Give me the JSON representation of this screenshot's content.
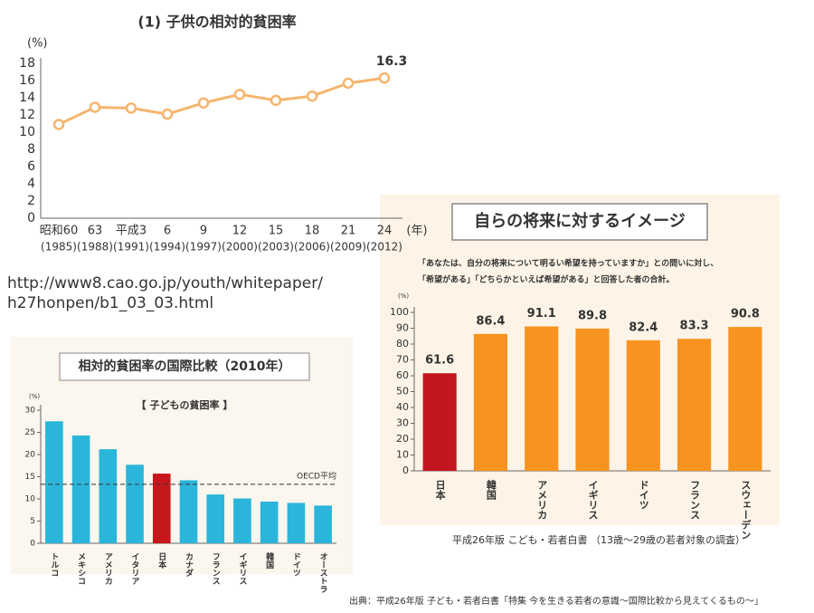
{
  "chart_data": [
    {
      "type": "line",
      "title": "(1) 子供の相対的貧困率",
      "y_label": "(%)",
      "x_label": "(年)",
      "categories": [
        "昭和60",
        "63",
        "平成3",
        "6",
        "9",
        "12",
        "15",
        "18",
        "21",
        "24"
      ],
      "x_sublabels": [
        "(1985)",
        "(1988)",
        "(1991)",
        "(1994)",
        "(1997)",
        "(2000)",
        "(2003)",
        "(2006)",
        "(2009)",
        "(2012)"
      ],
      "values": [
        10.9,
        12.9,
        12.8,
        12.1,
        13.4,
        14.4,
        13.7,
        14.2,
        15.7,
        16.3
      ],
      "color": "#f5b56e",
      "label_last": true,
      "ylim": [
        0,
        18
      ],
      "yticks": [
        0,
        2,
        4,
        6,
        8,
        10,
        12,
        14,
        16,
        18
      ]
    },
    {
      "type": "bar",
      "title": "相対的貧困率の国際比較（2010年）",
      "subtitle": "【 子どもの貧困率 】",
      "y_label": "(%)",
      "categories": [
        "トルコ",
        "メキシコ",
        "アメリカ",
        "イタリア",
        "日本",
        "カナダ",
        "フランス",
        "イギリス",
        "韓国",
        "ドイツ",
        "オーストラ"
      ],
      "values": [
        27.5,
        24.3,
        21.2,
        17.7,
        15.7,
        14.2,
        11.0,
        10.1,
        9.4,
        9.1,
        8.5
      ],
      "colors": [
        "#2bb5db",
        "#2bb5db",
        "#2bb5db",
        "#2bb5db",
        "#c8161d",
        "#2bb5db",
        "#2bb5db",
        "#2bb5db",
        "#2bb5db",
        "#2bb5db",
        "#2bb5db"
      ],
      "reference": {
        "value": 13.3,
        "label": "OECD平均"
      },
      "ylim": [
        0,
        30
      ],
      "yticks": [
        0,
        5,
        10,
        15,
        20,
        25,
        30
      ]
    },
    {
      "type": "bar",
      "title": "自らの将来に対するイメージ",
      "subtitle": [
        "「あなたは、自分の将来について明るい希望を持っていますか」との問いに対し、",
        "「希望がある」「どちらかといえば希望がある」と回答した者の合計。"
      ],
      "y_label": "(%)",
      "categories": [
        "日本",
        "韓国",
        "アメリカ",
        "イギリス",
        "ドイツ",
        "フランス",
        "スウェーデン"
      ],
      "values": [
        61.6,
        86.4,
        91.1,
        89.8,
        82.4,
        83.3,
        90.8
      ],
      "show_values": true,
      "colors": [
        "#c3161e",
        "#f7931e",
        "#f7931e",
        "#f7931e",
        "#f7931e",
        "#f7931e",
        "#f7931e"
      ],
      "ylim": [
        0,
        100
      ],
      "yticks": [
        0,
        10,
        20,
        30,
        40,
        50,
        60,
        70,
        80,
        90,
        100
      ]
    }
  ],
  "url": [
    "http://www8.cao.go.jp/youth/whitepaper/",
    "h27honpen/b1_03_03.html"
  ],
  "caption": "平成26年版 こども・若者白書 （13歳～29歳の若者対象の調査）",
  "source": "出典：平成26年版 子ども・若者白書「特集 今を生きる若者の意識～国際比較から見えてくるもの～」"
}
